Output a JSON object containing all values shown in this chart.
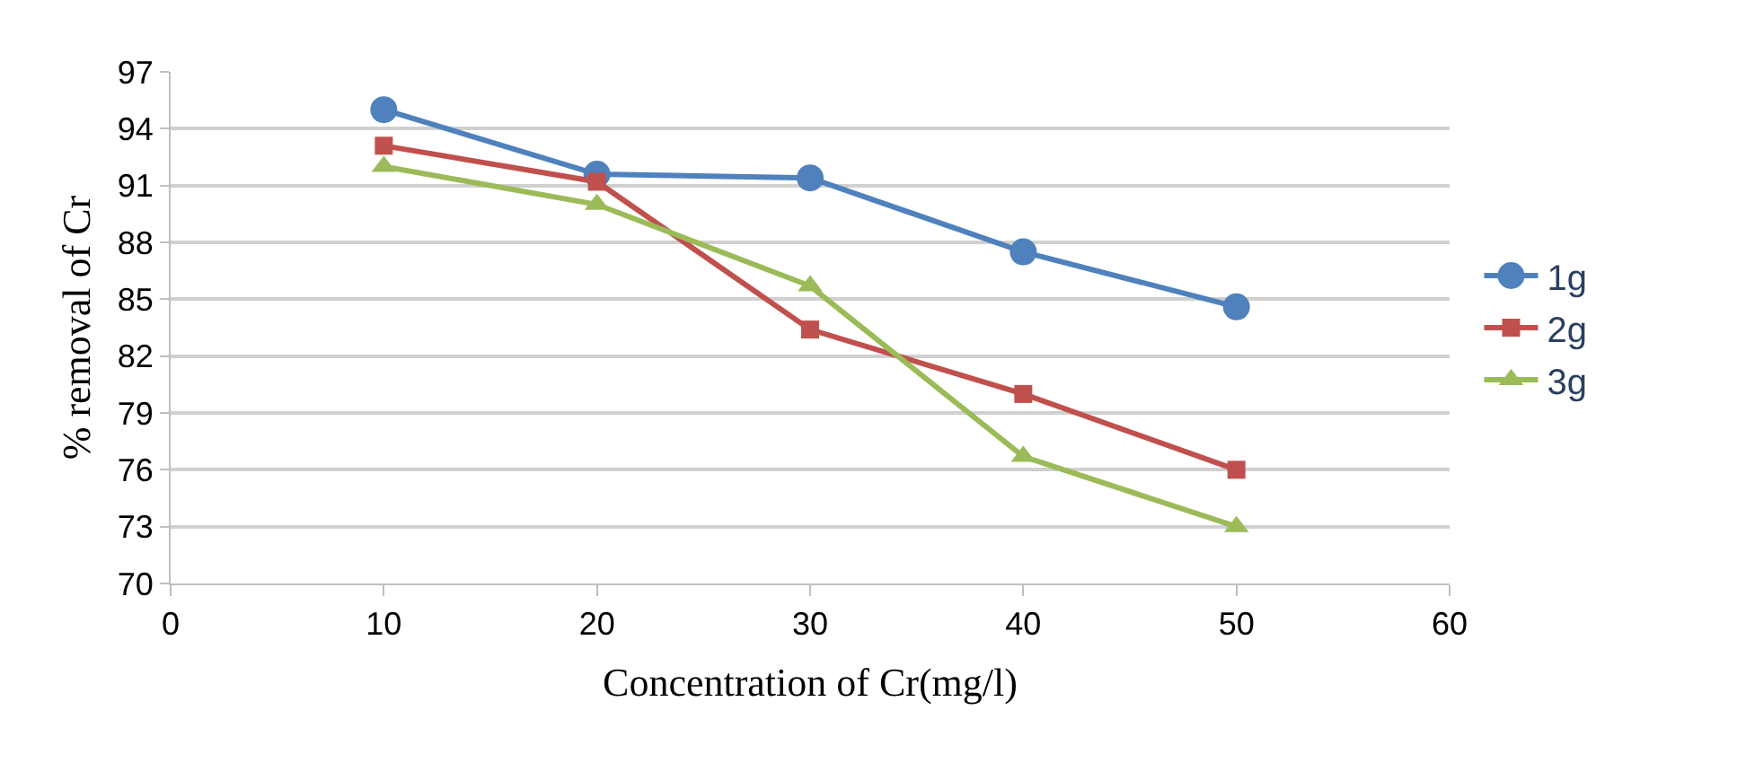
{
  "chart_data": {
    "type": "line",
    "xlabel": "Concentration of Cr(mg/l)",
    "ylabel": "% removal of Cr",
    "xlim": [
      0,
      60
    ],
    "xticks": [
      0,
      10,
      20,
      30,
      40,
      50,
      60
    ],
    "ylim": [
      70,
      97
    ],
    "yticks": [
      70,
      73,
      76,
      79,
      82,
      85,
      88,
      91,
      94,
      97
    ],
    "grid": "y",
    "legend": "right",
    "x": [
      10,
      20,
      30,
      40,
      50
    ],
    "series": [
      {
        "name": "1g",
        "color": "#4f81bd",
        "marker": "circle",
        "values": [
          95.0,
          91.6,
          91.4,
          87.5,
          84.6
        ]
      },
      {
        "name": "2g",
        "color": "#c0504d",
        "marker": "square",
        "values": [
          93.1,
          91.2,
          83.4,
          80.0,
          76.0
        ]
      },
      {
        "name": "3g",
        "color": "#9bbb59",
        "marker": "triangle",
        "values": [
          92.0,
          90.0,
          85.7,
          76.7,
          73.0
        ]
      }
    ]
  }
}
